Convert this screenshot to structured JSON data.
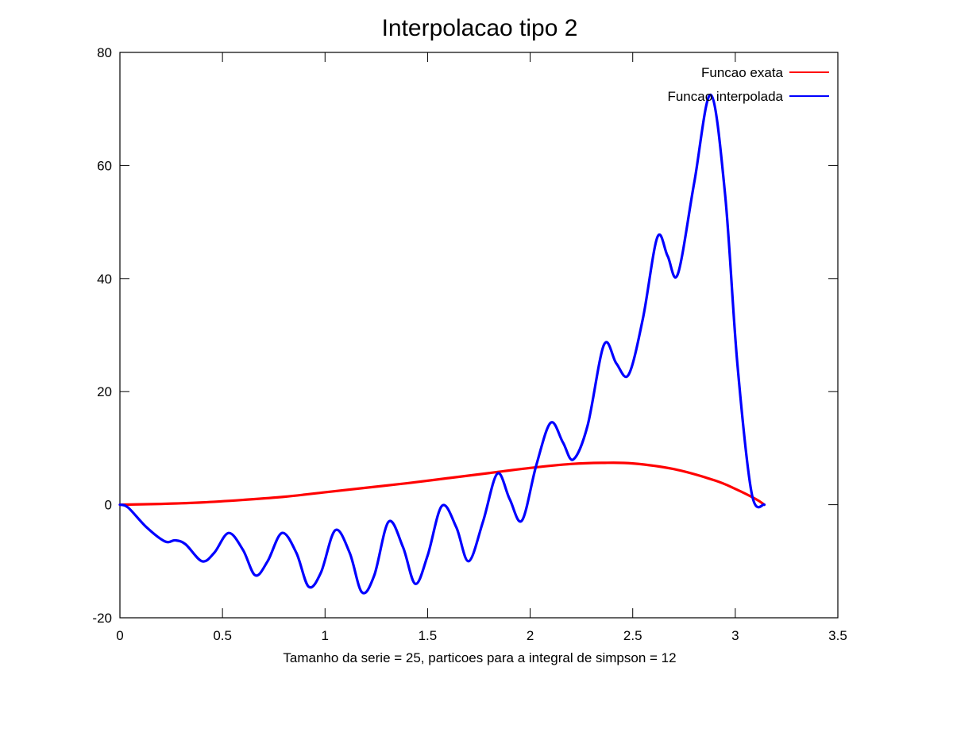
{
  "chart_data": {
    "type": "line",
    "title": "Interpolacao tipo 2",
    "xlabel": "Tamanho da serie = 25, particoes para a integral de simpson = 12",
    "ylabel": "",
    "xlim": [
      0,
      3.5
    ],
    "ylim": [
      -20,
      80
    ],
    "xticks": [
      "0",
      "0.5",
      "1",
      "1.5",
      "2",
      "2.5",
      "3",
      "3.5"
    ],
    "yticks": [
      "-20",
      "0",
      "20",
      "40",
      "60",
      "80"
    ],
    "grid": false,
    "legend_position": "top-right",
    "series": [
      {
        "name": "Funcao exata",
        "color": "#ff0000",
        "x": [
          0,
          0.2,
          0.4,
          0.6,
          0.8,
          1.0,
          1.2,
          1.4,
          1.6,
          1.8,
          2.0,
          2.2,
          2.35,
          2.5,
          2.7,
          2.9,
          3.0,
          3.1,
          3.1416
        ],
        "y": [
          0,
          0.14,
          0.4,
          0.85,
          1.4,
          2.2,
          3.0,
          3.8,
          4.7,
          5.6,
          6.5,
          7.2,
          7.4,
          7.3,
          6.3,
          4.3,
          2.8,
          1.0,
          0
        ]
      },
      {
        "name": "Funcao interpolada",
        "color": "#0000ff",
        "x": [
          0,
          0.04,
          0.13,
          0.22,
          0.27,
          0.32,
          0.4,
          0.46,
          0.53,
          0.6,
          0.66,
          0.72,
          0.79,
          0.86,
          0.92,
          0.98,
          1.05,
          1.12,
          1.18,
          1.24,
          1.31,
          1.38,
          1.44,
          1.5,
          1.57,
          1.64,
          1.7,
          1.77,
          1.84,
          1.9,
          1.96,
          2.03,
          2.1,
          2.16,
          2.21,
          2.28,
          2.36,
          2.42,
          2.48,
          2.55,
          2.62,
          2.67,
          2.72,
          2.8,
          2.88,
          2.95,
          3.01,
          3.08,
          3.1416
        ],
        "y": [
          0,
          -0.5,
          -4,
          -6.5,
          -6.3,
          -7,
          -10,
          -8.5,
          -5,
          -8,
          -12.5,
          -10,
          -5,
          -8.5,
          -14.5,
          -12,
          -4.5,
          -8.5,
          -15.5,
          -12.5,
          -3,
          -7.5,
          -14,
          -9,
          -0.2,
          -4,
          -10,
          -3,
          5.5,
          1,
          -2.8,
          7,
          14.5,
          11,
          8,
          14,
          28.3,
          25,
          23,
          33,
          47.3,
          44,
          40.8,
          57,
          72.5,
          55,
          25,
          2,
          0
        ]
      }
    ]
  }
}
